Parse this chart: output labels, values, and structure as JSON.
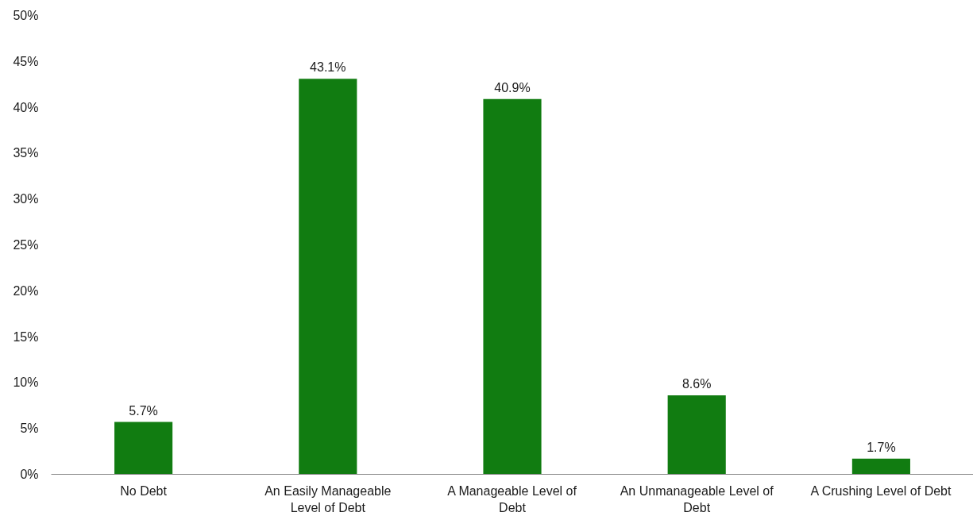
{
  "chart_data": {
    "type": "bar",
    "categories": [
      "No Debt",
      "An Easily Manageable Level of Debt",
      "A Manageable Level of Debt",
      "An Unmanageable Level of Debt",
      "A Crushing Level of Debt"
    ],
    "values": [
      5.7,
      43.1,
      40.9,
      8.6,
      1.7
    ],
    "value_labels": [
      "5.7%",
      "43.1%",
      "40.9%",
      "8.6%",
      "1.7%"
    ],
    "color": "#117c11",
    "ylim": [
      0,
      50
    ],
    "yticks": [
      {
        "value": 0,
        "label": "0%"
      },
      {
        "value": 5,
        "label": "5%"
      },
      {
        "value": 10,
        "label": "10%"
      },
      {
        "value": 15,
        "label": "15%"
      },
      {
        "value": 20,
        "label": "20%"
      },
      {
        "value": 25,
        "label": "25%"
      },
      {
        "value": 30,
        "label": "30%"
      },
      {
        "value": 35,
        "label": "35%"
      },
      {
        "value": 40,
        "label": "40%"
      },
      {
        "value": 45,
        "label": "45%"
      },
      {
        "value": 50,
        "label": "50%"
      }
    ]
  }
}
